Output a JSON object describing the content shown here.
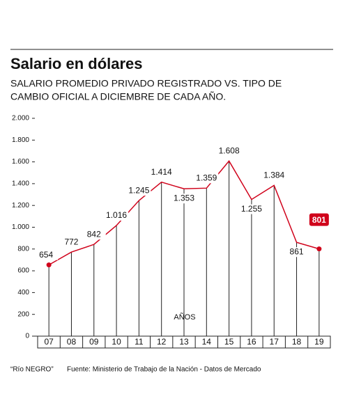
{
  "chart_data": {
    "type": "line",
    "title": "Salario en dólares",
    "subtitle": [
      "SALARIO PROMEDIO PRIVADO REGISTRADO VS. TIPO DE",
      "CAMBIO OFICIAL A DICIEMBRE DE CADA AÑO."
    ],
    "xlabel": "AÑOS",
    "categories": [
      "07",
      "08",
      "09",
      "10",
      "11",
      "12",
      "13",
      "14",
      "15",
      "16",
      "17",
      "18",
      "19"
    ],
    "values": [
      654,
      772,
      842,
      1016,
      1245,
      1414,
      1353,
      1359,
      1608,
      1255,
      1384,
      861,
      801
    ],
    "value_labels": [
      "654",
      "772",
      "842",
      "1.016",
      "1.245",
      "1.414",
      "1.353",
      "1.359",
      "1.608",
      "1.255",
      "1.384",
      "861",
      "801"
    ],
    "color": "#d0021b",
    "ylim": [
      0,
      2000
    ],
    "yticks": [
      0,
      200,
      400,
      600,
      800,
      {
        "value": 1000,
        "label": "1.000"
      },
      {
        "value": 1200,
        "label": "1.200"
      },
      {
        "value": 1400,
        "label": "1.400"
      },
      {
        "value": 1600,
        "label": "1.600"
      },
      {
        "value": 1800,
        "label": "1.800"
      },
      {
        "value": 2000,
        "label": "2.000"
      }
    ],
    "grid": false,
    "credit": "“Río NEGRO”",
    "source": "Fuente: Ministerio de Trabajo de la Nación - Datos de Mercado"
  }
}
